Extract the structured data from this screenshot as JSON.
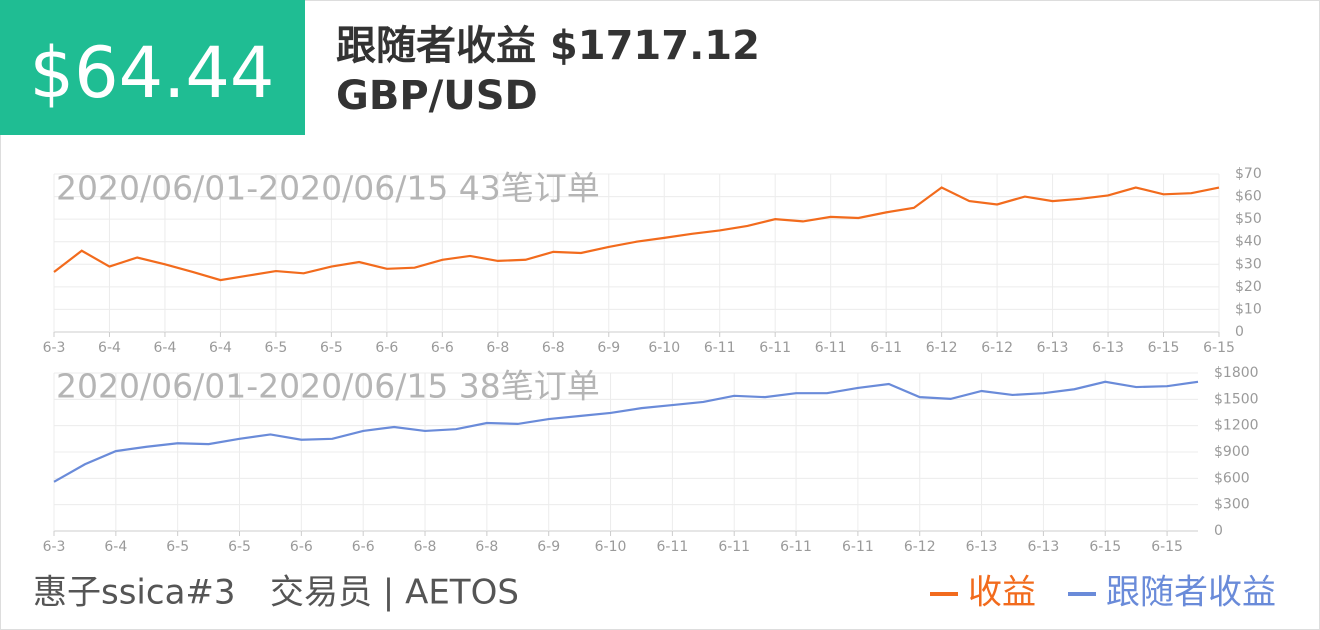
{
  "header": {
    "badge": "$64.44",
    "title": "跟随者收益 $1717.12",
    "pair": "GBP/USD"
  },
  "chart_data": [
    {
      "type": "line",
      "subtitle": "2020/06/01-2020/06/15 43笔订单",
      "categories": [
        "6-3",
        null,
        "6-4",
        null,
        "6-4",
        null,
        "6-4",
        null,
        "6-5",
        null,
        "6-5",
        null,
        "6-6",
        null,
        "6-6",
        null,
        "6-8",
        null,
        "6-8",
        null,
        "6-9",
        null,
        "6-10",
        null,
        "6-11",
        null,
        "6-11",
        null,
        "6-11",
        null,
        "6-11",
        null,
        "6-12",
        null,
        "6-12",
        null,
        "6-13",
        null,
        "6-13",
        null,
        "6-15",
        null,
        "6-15"
      ],
      "series": [
        {
          "name": "收益",
          "color": "#f26b1d",
          "values": [
            26.6,
            36,
            29,
            33,
            30,
            26.6,
            23,
            25,
            27,
            26,
            29,
            31,
            28,
            28.5,
            32,
            33.7,
            31.5,
            32,
            35.5,
            35,
            37.7,
            40,
            41.7,
            43.5,
            45,
            47,
            50,
            49,
            51,
            50.5,
            53,
            55,
            64,
            58,
            56.5,
            60,
            58,
            59,
            60.5,
            64,
            61,
            61.5,
            64
          ]
        }
      ],
      "ylim": [
        0,
        70
      ],
      "yticks": [
        0,
        {
          "value": 10,
          "label": "$10"
        },
        {
          "value": 20,
          "label": "$20"
        },
        {
          "value": 30,
          "label": "$30"
        },
        {
          "value": 40,
          "label": "$40"
        },
        {
          "value": 50,
          "label": "$50"
        },
        {
          "value": 60,
          "label": "$60"
        },
        {
          "value": 70,
          "label": "$70"
        }
      ],
      "grid": true
    },
    {
      "type": "line",
      "subtitle": "2020/06/01-2020/06/15 38笔订单",
      "categories": [
        "6-3",
        null,
        "6-4",
        null,
        "6-5",
        null,
        "6-5",
        null,
        "6-6",
        null,
        "6-6",
        null,
        "6-8",
        null,
        "6-8",
        null,
        "6-9",
        null,
        "6-10",
        null,
        "6-11",
        null,
        "6-11",
        null,
        "6-11",
        null,
        "6-11",
        null,
        "6-12",
        null,
        "6-13",
        null,
        "6-13",
        null,
        "6-15",
        null,
        "6-15",
        null
      ],
      "series": [
        {
          "name": "跟随者收益",
          "color": "#6a8bd9",
          "values": [
            560,
            760,
            910,
            960,
            1000,
            990,
            1050,
            1100,
            1040,
            1050,
            1140,
            1185,
            1140,
            1160,
            1230,
            1220,
            1275,
            1310,
            1345,
            1400,
            1435,
            1470,
            1540,
            1525,
            1570,
            1570,
            1630,
            1675,
            1525,
            1505,
            1595,
            1550,
            1570,
            1615,
            1700,
            1640,
            1650,
            1700
          ]
        }
      ],
      "ylim": [
        0,
        1800
      ],
      "yticks": [
        0,
        {
          "value": 300,
          "label": "$300"
        },
        {
          "value": 600,
          "label": "$600"
        },
        {
          "value": 900,
          "label": "$900"
        },
        {
          "value": 1200,
          "label": "$1200"
        },
        {
          "value": 1500,
          "label": "$1500"
        },
        {
          "value": 1800,
          "label": "$1800"
        }
      ],
      "grid": true
    }
  ],
  "footer": {
    "trader": "惠子ssica#3",
    "role": "交易员 | AETOS"
  }
}
